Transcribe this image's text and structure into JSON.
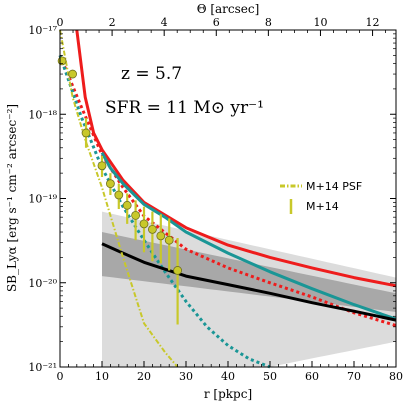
{
  "chart_data": {
    "type": "line",
    "xlabel": "r [pkpc]",
    "x2label": "Θ [arcsec]",
    "ylabel": "SB_Lyα [erg s⁻¹ cm⁻² arcsec⁻²]",
    "xlim": [
      0,
      80
    ],
    "ylim": [
      1e-21,
      1e-17
    ],
    "yscale": "log",
    "x2lim": [
      0,
      12.9
    ],
    "xticks": [
      0,
      10,
      20,
      30,
      40,
      50,
      60,
      70,
      80
    ],
    "x2ticks": [
      0,
      2,
      4,
      6,
      8,
      10,
      12
    ],
    "ytick_labels": [
      "10⁻²¹",
      "10⁻²⁰",
      "10⁻¹⁹",
      "10⁻¹⁸",
      "10⁻¹⁷"
    ],
    "yticks": [
      1e-21,
      1e-20,
      1e-19,
      1e-18,
      1e-17
    ],
    "annotations": [
      "z = 5.7",
      "SFR = 11 M⊙ yr⁻¹"
    ],
    "legend_position": "right-middle",
    "legend": [
      {
        "label": "M+14 PSF",
        "style": "dash-dot",
        "color": "#c8c82a"
      },
      {
        "label": "M+14",
        "style": "errorbar",
        "color": "#c8c82a"
      }
    ],
    "bands": [
      {
        "color": "#dcdcdc",
        "x": [
          10,
          80
        ],
        "lower": [
          4e-22,
          2e-21
        ],
        "upper": [
          7e-20,
          1.15e-20
        ]
      },
      {
        "color": "#a8a8a8",
        "x": [
          10,
          80
        ],
        "lower": [
          1.2e-20,
          4.5e-21
        ],
        "upper": [
          4e-20,
          7.5e-21
        ]
      }
    ],
    "series": [
      {
        "style": "solid",
        "color": "#ee1c1c",
        "x": [
          4,
          6,
          8,
          10,
          15,
          20,
          30,
          40,
          50,
          60,
          70,
          80
        ],
        "y": [
          1e-17,
          1.6e-18,
          6e-19,
          3.8e-19,
          1.65e-19,
          9e-20,
          4.5e-20,
          2.8e-20,
          2e-20,
          1.5e-20,
          1.15e-20,
          9.2e-21
        ]
      },
      {
        "style": "dotted",
        "color": "#ee1c1c",
        "x": [
          0,
          5,
          10,
          15,
          20,
          30,
          40,
          50,
          60,
          70,
          80
        ],
        "y": [
          5e-18,
          1.25e-18,
          3.3e-19,
          1.35e-19,
          6.2e-20,
          2.5e-20,
          1.5e-20,
          1e-20,
          6.8e-21,
          4.4e-21,
          3.1e-21
        ]
      },
      {
        "style": "solid",
        "color": "#1a9696",
        "x": [
          10,
          12,
          15,
          20,
          25,
          30,
          40,
          50,
          60,
          70,
          80
        ],
        "y": [
          3.5e-19,
          2.3e-19,
          1.5e-19,
          8.5e-20,
          6e-20,
          4e-20,
          2.25e-20,
          1.35e-20,
          8.5e-21,
          5.5e-21,
          3.7e-21
        ]
      },
      {
        "style": "dotted",
        "color": "#1a9696",
        "x": [
          0,
          5,
          10,
          15,
          20,
          25,
          30,
          35,
          40,
          45,
          50
        ],
        "y": [
          5e-18,
          9.5e-19,
          2.3e-19,
          8e-20,
          3.2e-20,
          1.35e-20,
          6e-21,
          3e-21,
          1.8e-21,
          1.25e-21,
          1e-21
        ]
      },
      {
        "style": "solid",
        "color": "#000000",
        "x": [
          10,
          15,
          20,
          30,
          40,
          50,
          60,
          70,
          80
        ],
        "y": [
          2.9e-20,
          2.25e-20,
          1.75e-20,
          1.2e-20,
          9.5e-21,
          7.5e-21,
          5.8e-21,
          4.6e-21,
          3.6e-21
        ]
      },
      {
        "name": "M+14 PSF",
        "style": "dash-dot",
        "color": "#c8c82a",
        "x": [
          0,
          3,
          6,
          10,
          15,
          20,
          25,
          28
        ],
        "y": [
          2.5e-17,
          1.6e-18,
          5e-19,
          1.35e-19,
          2e-20,
          3.3e-21,
          1.5e-21,
          1e-21
        ]
      }
    ],
    "points": {
      "name": "M+14",
      "color": "#c8c82a",
      "x": [
        0.5,
        3,
        6.2,
        10,
        12,
        14,
        16,
        18,
        20,
        22,
        24,
        26,
        28
      ],
      "y": [
        4.3e-18,
        3e-18,
        6e-19,
        2.45e-19,
        1.5e-19,
        1.1e-19,
        8.3e-20,
        6.3e-20,
        5e-20,
        4.3e-20,
        3.6e-20,
        3.2e-20,
        1.4e-20
      ],
      "y_low": [
        4.3e-18,
        3e-18,
        4e-19,
        1.8e-19,
        1.1e-19,
        7.5e-20,
        5e-20,
        3.2e-20,
        2.3e-20,
        1.8e-20,
        1.7e-20,
        1.4e-20,
        3.2e-21
      ],
      "y_high": [
        4.3e-18,
        3e-18,
        9e-19,
        3.2e-19,
        2e-19,
        1.5e-19,
        1.15e-19,
        9.5e-20,
        8e-20,
        7e-20,
        6.5e-20,
        5.8e-20,
        3.4e-20
      ]
    }
  }
}
